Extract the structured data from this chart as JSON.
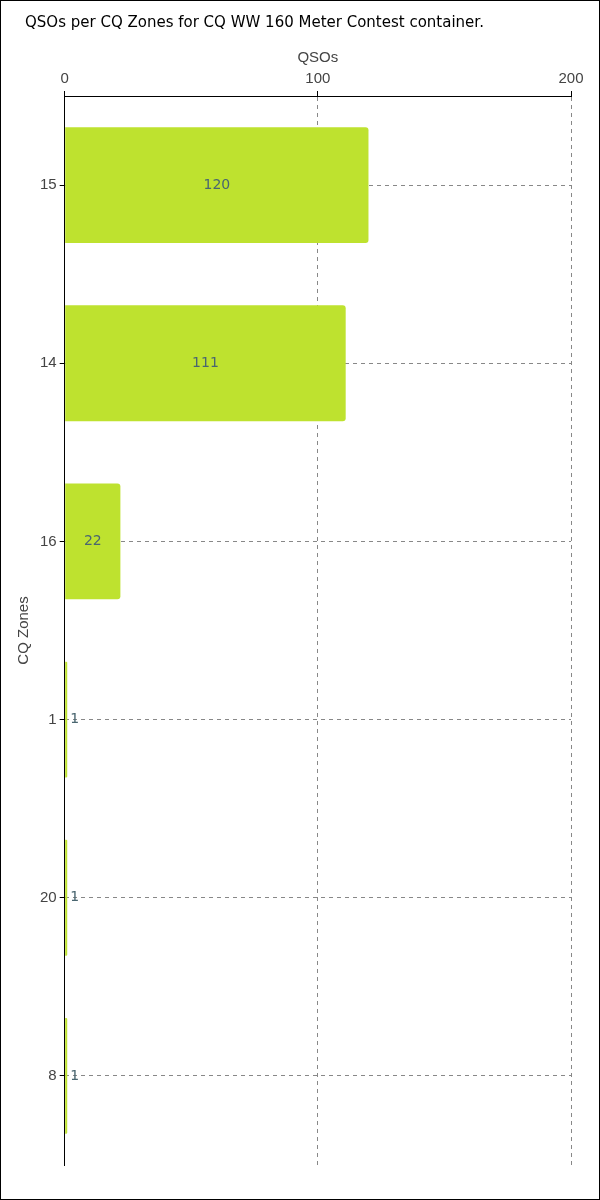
{
  "chart_data": {
    "type": "bar",
    "orientation": "horizontal",
    "title": "QSOs per CQ Zones for CQ WW 160 Meter Contest container.",
    "xlabel": "QSOs",
    "ylabel": "CQ Zones",
    "categories": [
      "15",
      "14",
      "16",
      "1",
      "20",
      "8"
    ],
    "values": [
      120,
      111,
      22,
      1,
      1,
      1
    ],
    "color": "#bee22f",
    "xlim": [
      0,
      200
    ],
    "xticks": [
      0,
      100,
      200
    ],
    "grid": true,
    "data_labels": true
  }
}
